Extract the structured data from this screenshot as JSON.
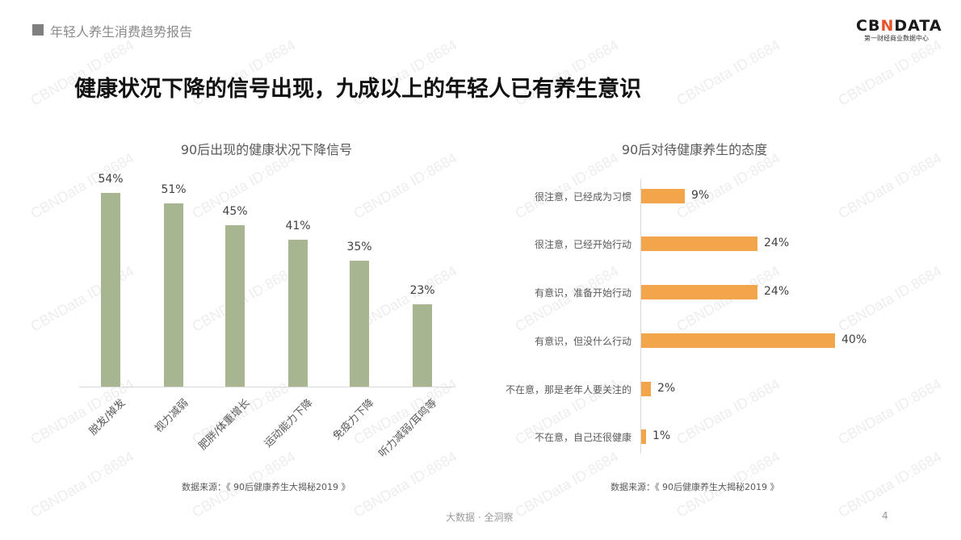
{
  "header": {
    "section_title": "年轻人养生消费趋势报告",
    "logo_main_prefix": "CB",
    "logo_main_x": "N",
    "logo_main_suffix": "DATA",
    "logo_sub": "第一财经商业数据中心"
  },
  "page_title": "健康状况下降的信号出现，九成以上的年轻人已有养生意识",
  "left_chart": {
    "title": "90后出现的健康状况下降信号",
    "source": "数据来源：《 90后健康养生大揭秘2019 》",
    "bar_color": "#a7b591"
  },
  "right_chart": {
    "title": "90后对待健康养生的态度",
    "source": "数据来源：《 90后健康养生大揭秘2019 》",
    "bar_color": "#f2a54b"
  },
  "chart_data": [
    {
      "type": "bar",
      "title": "90后出现的健康状况下降信号",
      "categories": [
        "脱发/掉发",
        "视力减弱",
        "肥胖/体重增长",
        "运动能力下降",
        "免疫力下降",
        "听力减弱/耳鸣等"
      ],
      "values": [
        54,
        51,
        45,
        41,
        35,
        23
      ],
      "labels": [
        "54%",
        "51%",
        "45%",
        "41%",
        "35%",
        "23%"
      ],
      "unit": "%",
      "xlabel": "",
      "ylabel": "",
      "grid": false,
      "legend": null
    },
    {
      "type": "bar",
      "orientation": "horizontal",
      "title": "90后对待健康养生的态度",
      "categories": [
        "很注意，已经成为习惯",
        "很注意，已经开始行动",
        "有意识，准备开始行动",
        "有意识，但没什么行动",
        "不在意，那是老年人要关注的",
        "不在意，自己还很健康"
      ],
      "values": [
        9,
        24,
        24,
        40,
        2,
        1
      ],
      "labels": [
        "9%",
        "24%",
        "24%",
        "40%",
        "2%",
        "1%"
      ],
      "unit": "%",
      "xlabel": "",
      "ylabel": "",
      "grid": false,
      "legend": null
    }
  ],
  "footer": {
    "tagline": "大数据 · 全洞察",
    "page_number": "4"
  },
  "watermark": "CBNData ID:8684"
}
